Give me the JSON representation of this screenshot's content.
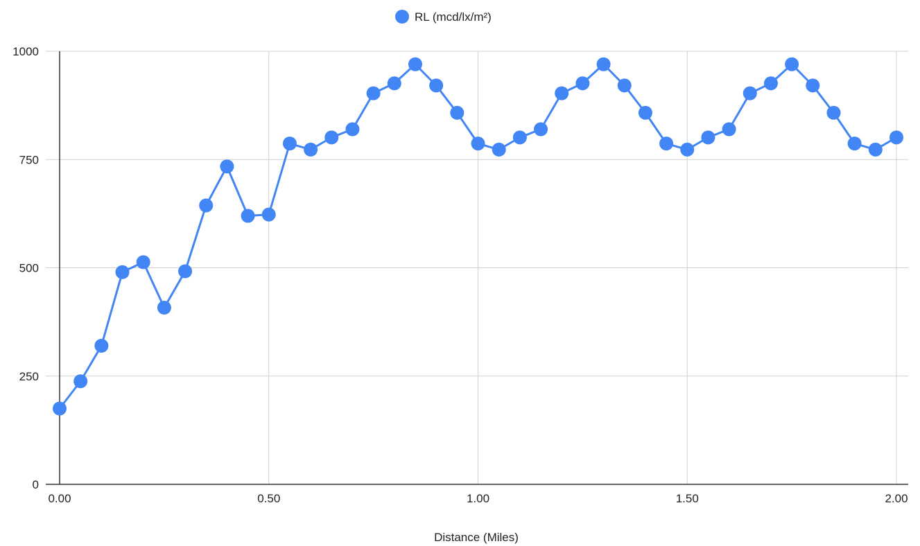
{
  "chart_data": {
    "type": "line",
    "title": "",
    "xlabel": "Distance (Miles)",
    "ylabel": "",
    "xlim": [
      0,
      2
    ],
    "ylim": [
      0,
      1000
    ],
    "x_ticks": [
      "0.00",
      "0.50",
      "1.00",
      "1.50",
      "2.00"
    ],
    "y_ticks": [
      "0",
      "250",
      "500",
      "750",
      "1000"
    ],
    "grid": true,
    "legend_position": "top-center",
    "series": [
      {
        "name": "RL (mcd/lx/m²)",
        "color": "#4285f4",
        "x": [
          0.0,
          0.05,
          0.1,
          0.15,
          0.2,
          0.25,
          0.3,
          0.35,
          0.4,
          0.45,
          0.5,
          0.55,
          0.6,
          0.65,
          0.7,
          0.75,
          0.8,
          0.85,
          0.9,
          0.95,
          1.0,
          1.05,
          1.1,
          1.15,
          1.2,
          1.25,
          1.3,
          1.35,
          1.4,
          1.45,
          1.5,
          1.55,
          1.6,
          1.65,
          1.7,
          1.75,
          1.8,
          1.85,
          1.9,
          1.95,
          2.0
        ],
        "values": [
          175,
          238,
          320,
          490,
          513,
          408,
          492,
          644,
          734,
          620,
          623,
          787,
          773,
          801,
          820,
          903,
          926,
          970,
          921,
          858,
          787,
          773,
          801,
          820,
          903,
          926,
          970,
          921,
          858,
          787,
          773,
          801,
          820,
          903,
          926,
          970,
          921,
          858,
          787,
          773,
          801
        ]
      }
    ]
  }
}
